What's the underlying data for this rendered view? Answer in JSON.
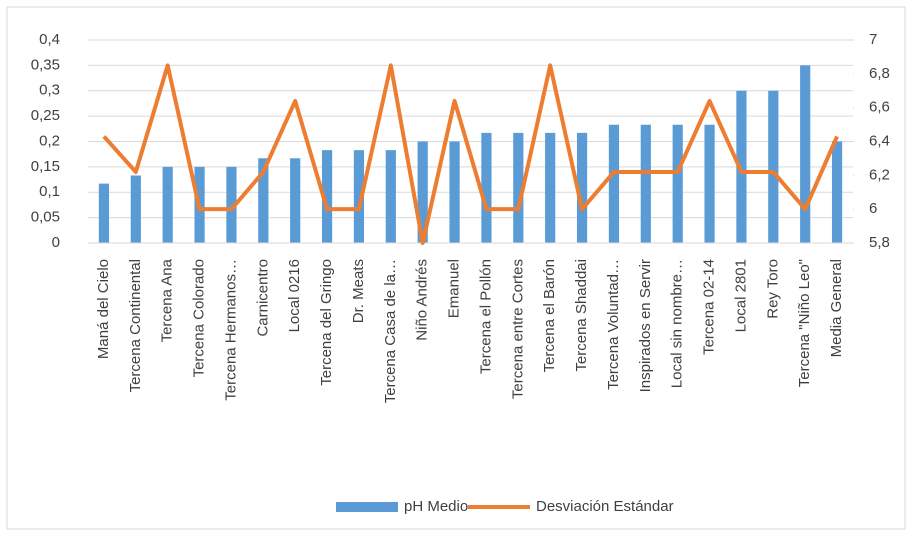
{
  "chart_data": {
    "type": "bar_line",
    "categories": [
      "Maná del Cielo",
      "Tercena Continental",
      "Tercena Ana",
      "Tercena Colorado",
      "Tercena Hermanos…",
      "Carnicentro",
      "Local 0216",
      "Tercena del Gringo",
      "Dr. Meats",
      "Tercena Casa de la…",
      "Niño Andrés",
      "Emanuel",
      "Tercena el Pollón",
      "Tercena entre Cortes",
      "Tercena el Barón",
      "Tercena Shaddai",
      "Tercena Voluntad…",
      "Inspirados en Servir",
      "Local sin nombre…",
      "Tercena 02-14",
      "Local 2801",
      "Rey Toro",
      "Tercena \"Niño Leo\"",
      "Media General"
    ],
    "series": [
      {
        "name": "pH Medio",
        "type": "bar",
        "axis": "y",
        "color": "#5b9bd5",
        "values": [
          0.117,
          0.133,
          0.15,
          0.15,
          0.15,
          0.167,
          0.167,
          0.183,
          0.183,
          0.183,
          0.2,
          0.2,
          0.217,
          0.217,
          0.217,
          0.217,
          0.233,
          0.233,
          0.233,
          0.233,
          0.3,
          0.3,
          0.35,
          0.2
        ]
      },
      {
        "name": "Desviación Estándar",
        "type": "line",
        "axis": "y2",
        "color": "#ed7d31",
        "values": [
          6.43,
          6.22,
          6.85,
          6.0,
          6.0,
          6.22,
          6.64,
          6.0,
          6.0,
          6.85,
          5.8,
          6.64,
          6.0,
          6.0,
          6.85,
          6.0,
          6.22,
          6.22,
          6.22,
          6.64,
          6.22,
          6.22,
          6.0,
          6.43
        ]
      }
    ],
    "ylim": [
      0,
      0.4
    ],
    "yticks": [
      0,
      {
        "value": 0.05,
        "label": "0,05"
      },
      {
        "value": 0.1,
        "label": "0,1"
      },
      {
        "value": 0.15,
        "label": "0,15"
      },
      {
        "value": 0.2,
        "label": "0,2"
      },
      {
        "value": 0.25,
        "label": "0,25"
      },
      {
        "value": 0.3,
        "label": "0,3"
      },
      {
        "value": 0.35,
        "label": "0,35"
      },
      {
        "value": 0.4,
        "label": "0,4"
      }
    ],
    "y2lim": [
      5.8,
      7
    ],
    "y2ticks": [
      {
        "value": 5.8,
        "label": "5,8"
      },
      6,
      {
        "value": 6.2,
        "label": "6,2"
      },
      {
        "value": 6.4,
        "label": "6,4"
      },
      {
        "value": 6.6,
        "label": "6,6"
      },
      {
        "value": 6.8,
        "label": "6,8"
      },
      7
    ],
    "legend": "bottom"
  }
}
